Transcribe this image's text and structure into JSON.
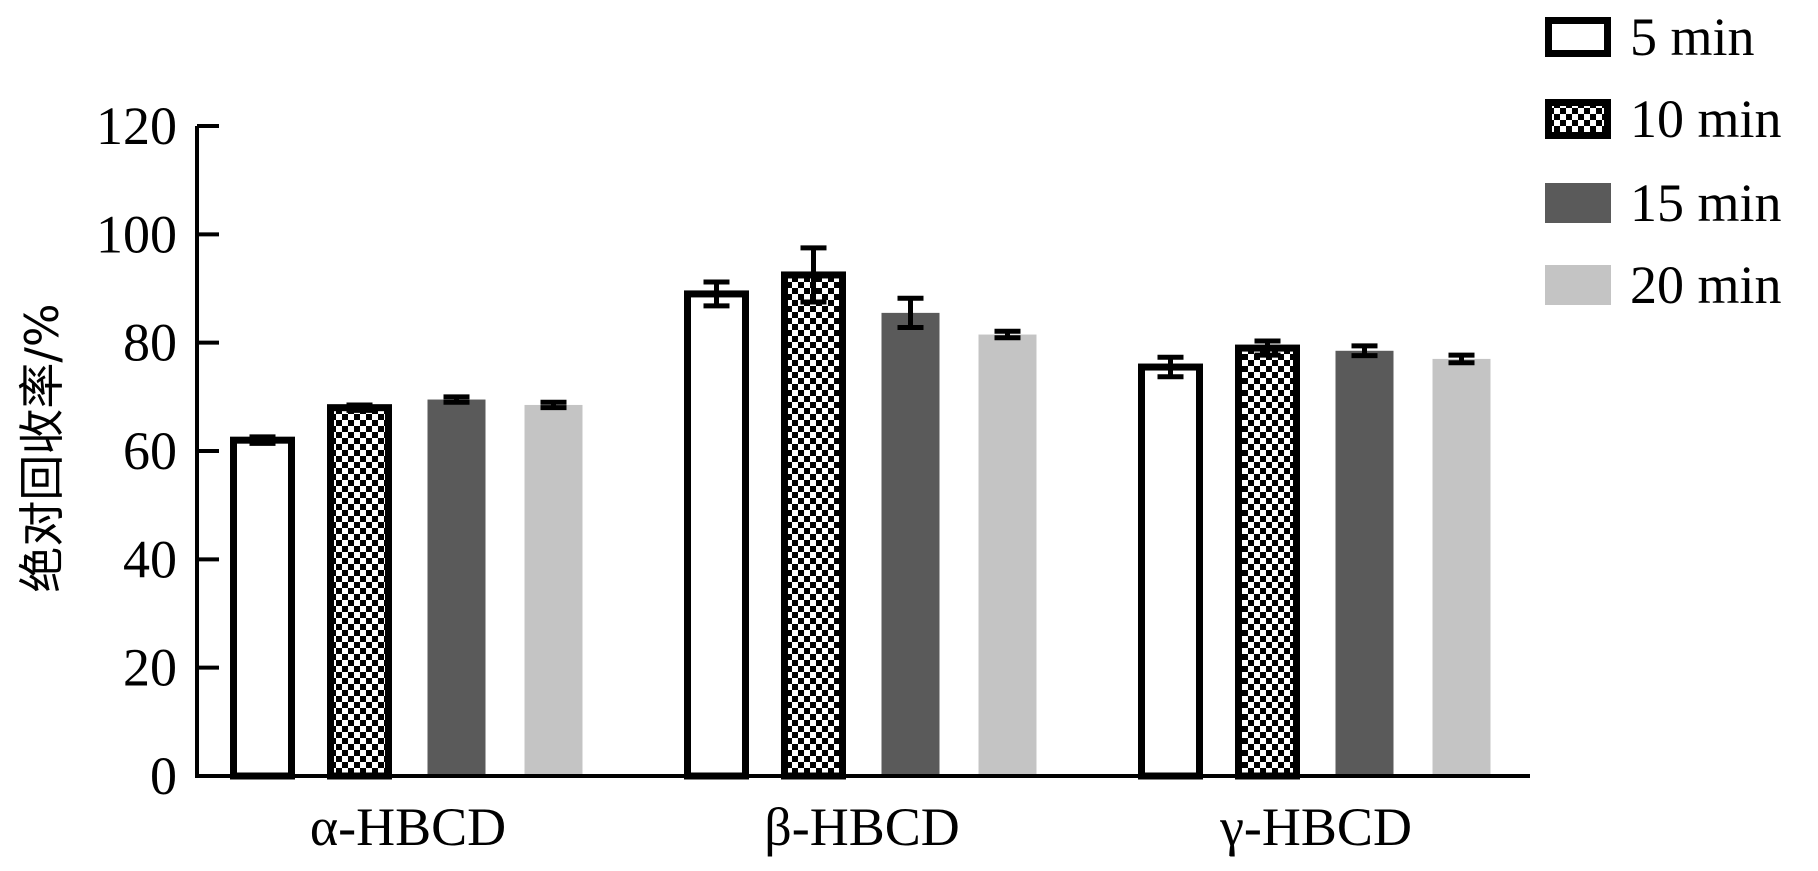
{
  "chart_data": {
    "type": "bar",
    "title": "",
    "xlabel": "",
    "ylabel": "绝对回收率/%",
    "ylim": [
      0,
      120
    ],
    "yticks": [
      0,
      20,
      40,
      60,
      80,
      100,
      120
    ],
    "categories": [
      "α-HBCD",
      "β-HBCD",
      "γ-HBCD"
    ],
    "legend_position": "top-right",
    "grid": false,
    "series": [
      {
        "name": "5 min",
        "style": "outline",
        "values": [
          62,
          89,
          75.5
        ],
        "errors": [
          0.6,
          2.2,
          1.8
        ]
      },
      {
        "name": "10 min",
        "style": "checkered",
        "values": [
          68,
          92.5,
          79
        ],
        "errors": [
          0.5,
          5,
          1.3
        ]
      },
      {
        "name": "15 min",
        "style": "dark",
        "values": [
          69.5,
          85.5,
          78.5
        ],
        "errors": [
          0.5,
          2.7,
          0.9
        ]
      },
      {
        "name": "20 min",
        "style": "light",
        "values": [
          68.5,
          81.5,
          77
        ],
        "errors": [
          0.5,
          0.6,
          0.7
        ]
      }
    ],
    "colors": {
      "outline_fill": "#ffffff",
      "outline_stroke": "#000000",
      "checker_dark": "#000000",
      "checker_light": "#ffffff",
      "dark": "#5a5a5a",
      "light": "#c4c4c4"
    }
  }
}
